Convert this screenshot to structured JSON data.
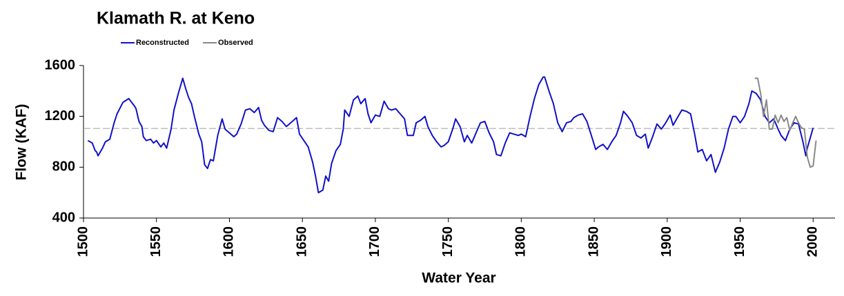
{
  "chart_data": {
    "type": "line",
    "title": "Klamath R. at Keno",
    "xlabel": "Water Year",
    "ylabel": "Flow (KAF)",
    "xlim": [
      1500,
      2015
    ],
    "ylim": [
      400,
      1600
    ],
    "xticks": [
      1500,
      1550,
      1600,
      1650,
      1700,
      1750,
      1800,
      1850,
      1900,
      1950,
      2000
    ],
    "yticks": [
      400,
      800,
      1200,
      1600
    ],
    "hline": 1105,
    "hline_color": "#aaaaaa",
    "legend": "top",
    "series": [
      {
        "name": "Reconstructed",
        "color": "#1010c8",
        "x": [
          1503,
          1506,
          1508,
          1509,
          1510,
          1513,
          1515,
          1518,
          1521,
          1523,
          1527,
          1531,
          1535,
          1536,
          1538,
          1540,
          1541,
          1543,
          1546,
          1548,
          1550,
          1553,
          1555,
          1557,
          1560,
          1562,
          1565,
          1568,
          1570,
          1572,
          1574,
          1576,
          1579,
          1581,
          1583,
          1585,
          1587,
          1589,
          1592,
          1595,
          1597,
          1600,
          1603,
          1605,
          1608,
          1611,
          1614,
          1617,
          1620,
          1622,
          1624,
          1627,
          1630,
          1633,
          1636,
          1639,
          1641,
          1644,
          1646,
          1648,
          1651,
          1654,
          1657,
          1659,
          1661,
          1664,
          1666,
          1668,
          1670,
          1673,
          1676,
          1678,
          1679,
          1682,
          1685,
          1688,
          1690,
          1693,
          1695,
          1697,
          1700,
          1703,
          1706,
          1709,
          1711,
          1714,
          1717,
          1720,
          1722,
          1726,
          1728,
          1731,
          1734,
          1736,
          1739,
          1742,
          1745,
          1747,
          1750,
          1753,
          1755,
          1758,
          1761,
          1763,
          1766,
          1769,
          1772,
          1775,
          1778,
          1781,
          1783,
          1786,
          1789,
          1792,
          1795,
          1798,
          1800,
          1803,
          1806,
          1809,
          1812,
          1815,
          1816,
          1819,
          1822,
          1825,
          1828,
          1831,
          1834,
          1836,
          1839,
          1842,
          1845,
          1848,
          1851,
          1853,
          1856,
          1859,
          1862,
          1865,
          1868,
          1870,
          1873,
          1876,
          1879,
          1882,
          1885,
          1887,
          1890,
          1893,
          1896,
          1899,
          1902,
          1904,
          1907,
          1910,
          1913,
          1916,
          1919,
          1921,
          1924,
          1927,
          1930,
          1933,
          1936,
          1939,
          1942,
          1945,
          1947,
          1950,
          1953,
          1956,
          1958,
          1961,
          1964,
          1967,
          1970,
          1973,
          1976,
          1978,
          1981,
          1984,
          1987,
          1990,
          1993,
          1995,
          1996,
          2000
        ],
        "values": [
          1010,
          990,
          930,
          920,
          890,
          950,
          1000,
          1020,
          1150,
          1220,
          1310,
          1340,
          1280,
          1260,
          1160,
          1120,
          1040,
          1010,
          1020,
          990,
          1010,
          960,
          990,
          950,
          1100,
          1250,
          1380,
          1500,
          1420,
          1350,
          1300,
          1200,
          1060,
          1000,
          820,
          790,
          860,
          850,
          1050,
          1180,
          1100,
          1070,
          1040,
          1060,
          1140,
          1250,
          1260,
          1230,
          1270,
          1170,
          1130,
          1090,
          1080,
          1190,
          1160,
          1120,
          1140,
          1170,
          1190,
          1060,
          1010,
          960,
          840,
          730,
          600,
          620,
          730,
          690,
          830,
          930,
          980,
          1100,
          1250,
          1200,
          1330,
          1360,
          1300,
          1340,
          1220,
          1150,
          1210,
          1200,
          1320,
          1260,
          1250,
          1260,
          1220,
          1180,
          1050,
          1050,
          1150,
          1170,
          1200,
          1120,
          1050,
          1000,
          960,
          970,
          1000,
          1100,
          1180,
          1120,
          1000,
          1050,
          990,
          1070,
          1150,
          1160,
          1070,
          1000,
          900,
          890,
          990,
          1070,
          1060,
          1050,
          1060,
          1040,
          1200,
          1340,
          1450,
          1510,
          1510,
          1400,
          1300,
          1150,
          1080,
          1150,
          1160,
          1190,
          1210,
          1220,
          1160,
          1050,
          940,
          960,
          980,
          940,
          1000,
          1050,
          1150,
          1240,
          1200,
          1150,
          1050,
          1030,
          1060,
          950,
          1040,
          1140,
          1100,
          1150,
          1210,
          1130,
          1190,
          1250,
          1240,
          1220,
          1050,
          920,
          940,
          850,
          900,
          760,
          840,
          950,
          1100,
          1200,
          1200,
          1150,
          1200,
          1300,
          1400,
          1380,
          1330,
          1200,
          1150,
          1180,
          1100,
          1050,
          1010,
          1100,
          1150,
          1140,
          1000,
          890,
          950,
          1110
        ]
      },
      {
        "name": "Observed",
        "color": "#888888",
        "x": [
          1960,
          1962,
          1964,
          1966,
          1968,
          1970,
          1972,
          1974,
          1976,
          1978,
          1980,
          1982,
          1984,
          1986,
          1988,
          1990,
          1992,
          1994,
          1996,
          1998,
          2000,
          2002
        ],
        "values": [
          1500,
          1500,
          1380,
          1200,
          1330,
          1100,
          1100,
          1210,
          1150,
          1210,
          1160,
          1190,
          1090,
          1150,
          1200,
          1150,
          1110,
          1100,
          880,
          800,
          810,
          1010
        ]
      }
    ]
  }
}
